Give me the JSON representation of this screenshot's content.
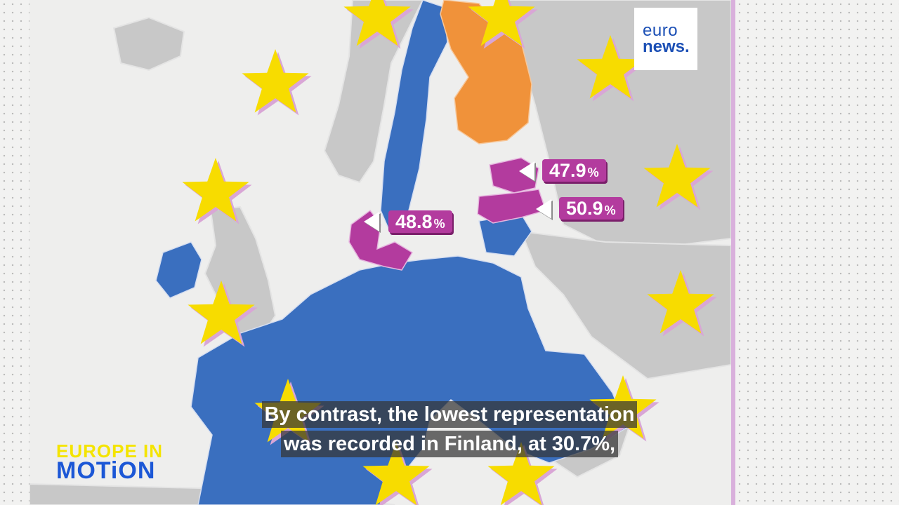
{
  "logo": {
    "line1": "euro",
    "line2": "news."
  },
  "callouts": [
    {
      "value": "47.9",
      "unit": "%"
    },
    {
      "value": "50.9",
      "unit": "%"
    },
    {
      "value": "48.8",
      "unit": "%"
    }
  ],
  "subtitles": {
    "line1": "By contrast, the lowest representation",
    "line2": "was recorded in Finland, at 30.7%,"
  },
  "brand": {
    "line1": "EUROPE IN",
    "line2": "MOTiON"
  },
  "colors": {
    "eu_blue": "#3a6fbf",
    "highlight_magenta": "#b33b9e",
    "finland_orange": "#f0923a",
    "non_eu_grey": "#c8c8c8",
    "star_yellow": "#f7dc00"
  }
}
